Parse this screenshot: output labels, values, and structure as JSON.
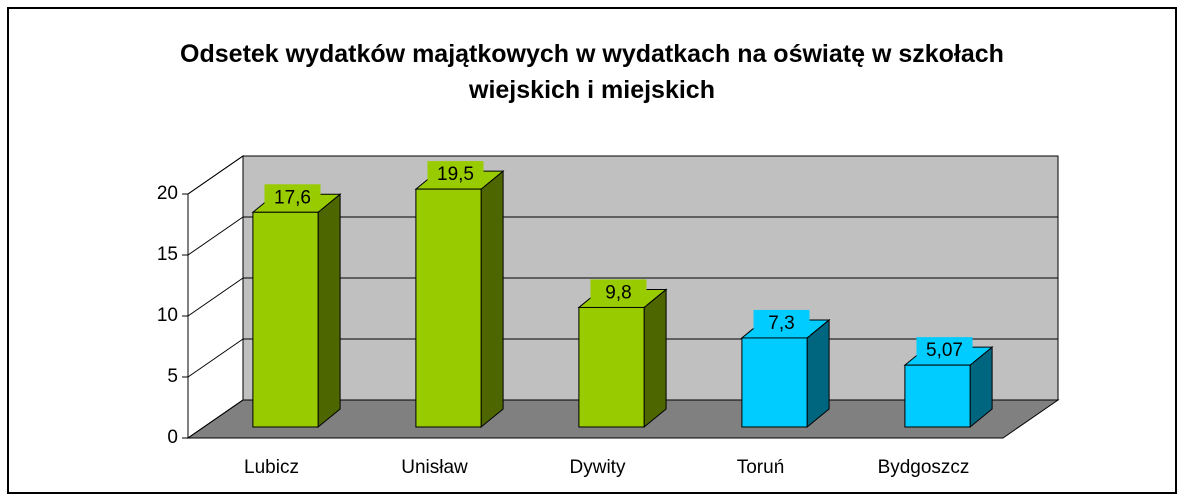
{
  "chart_data": {
    "type": "bar3d",
    "title": "Odsetek wydatków majątkowych w wydatkach na oświatę w szkołach wiejskich i miejskich",
    "categories": [
      "Lubicz",
      "Unisław",
      "Dywity",
      "Toruń",
      "Bydgoszcz"
    ],
    "values": [
      17.6,
      19.5,
      9.8,
      7.3,
      5.07
    ],
    "value_labels": [
      "17,6",
      "19,5",
      "9,8",
      "7,3",
      "5,07"
    ],
    "colors": [
      "#99cc00",
      "#99cc00",
      "#99cc00",
      "#00ccff",
      "#00ccff"
    ],
    "ylim": [
      0,
      20
    ],
    "yticks": [
      0,
      5,
      10,
      15,
      20
    ],
    "grid": true
  }
}
